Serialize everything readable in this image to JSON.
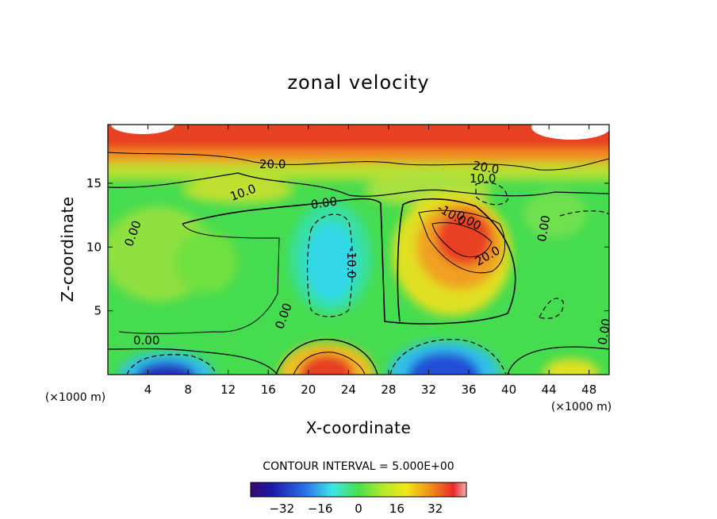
{
  "chart_data": {
    "type": "heatmap",
    "title": "zonal velocity",
    "xlabel": "X-coordinate",
    "ylabel": "Z-coordinate",
    "xunit_left": "(×1000 m)",
    "xunit_right": "(×1000 m)",
    "xlim": [
      0,
      50
    ],
    "ylim": [
      0,
      19.6
    ],
    "xticks": [
      4,
      8,
      12,
      16,
      20,
      24,
      28,
      32,
      36,
      40,
      44,
      48
    ],
    "yticks": [
      5,
      10,
      15
    ],
    "contour_interval_text": "CONTOUR INTERVAL = 5.000E+00",
    "colorbar": {
      "range": [
        -45,
        45
      ],
      "ticks": [
        -32,
        -16,
        0,
        16,
        32
      ]
    },
    "contour_labels": [
      "20.0",
      "10.0",
      "0.00",
      "-10.0",
      "20.0",
      "10.0",
      "0.00",
      "-10.0",
      "20.0",
      "0.00",
      "0.00",
      "0.00",
      "0.00",
      "0.00",
      "-10.0"
    ],
    "features": [
      {
        "kind": "max",
        "x": 35,
        "z": 11.5,
        "value": 32
      },
      {
        "kind": "max",
        "x": 22,
        "z": 0.5,
        "value": 30
      },
      {
        "kind": "min",
        "x": 22,
        "z": 10,
        "value": -14
      },
      {
        "kind": "min",
        "x": 34,
        "z": 0.8,
        "value": -40
      },
      {
        "kind": "min",
        "x": 6,
        "z": 0.6,
        "value": -38
      },
      {
        "kind": "jet",
        "z": 17.5,
        "value": 32
      }
    ]
  }
}
